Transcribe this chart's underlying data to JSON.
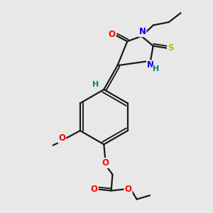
{
  "bg_color": "#e8e8e8",
  "bond_color": "#1a1a1a",
  "bond_width": 1.6,
  "atom_colors": {
    "O": "#ff0000",
    "N": "#0000ee",
    "S": "#b8b800",
    "H": "#008080"
  },
  "font_size": 8.5
}
